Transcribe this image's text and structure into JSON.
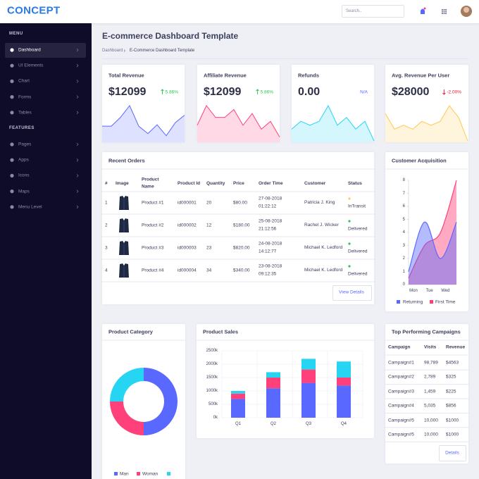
{
  "header": {
    "brand": "CONCEPT",
    "search_placeholder": "Search.."
  },
  "sidebar": {
    "sections": [
      {
        "title": "MENU",
        "items": [
          "Dashboard",
          "UI Elements",
          "Chart",
          "Forms",
          "Tables"
        ]
      },
      {
        "title": "FEATURES",
        "items": [
          "Pages",
          "Apps",
          "Icons",
          "Maps",
          "Menu Level"
        ]
      }
    ]
  },
  "page": {
    "title": "E-commerce Dashboard Template",
    "breadcrumb": [
      "Dashboard",
      "E-Commerce Dashboard Template"
    ]
  },
  "kpis": [
    {
      "title": "Total Revenue",
      "value": "$12099",
      "change": "5.86%",
      "trend": "up",
      "color": "#5969ff",
      "sparkline": [
        4,
        4,
        6.4,
        9.6,
        4,
        2,
        4.4,
        1.4,
        5,
        7
      ]
    },
    {
      "title": "Affiliate Revenue",
      "value": "$12099",
      "change": "5.86%",
      "trend": "up",
      "color": "#ff407b",
      "sparkline": [
        4,
        9,
        6,
        6,
        8,
        4,
        7,
        3,
        5,
        1
      ]
    },
    {
      "title": "Refunds",
      "value": "0.00",
      "change": "N/A",
      "trend": "neutral",
      "color": "#25d5f2",
      "sparkline": [
        3,
        5,
        4,
        5,
        9,
        4,
        6,
        3,
        5,
        0
      ]
    },
    {
      "title": "Avg. Revenue Per User",
      "value": "$28000",
      "change": "-2.00%",
      "trend": "down",
      "color": "#ffc750",
      "sparkline": [
        7,
        3,
        4,
        3,
        5,
        4,
        5,
        9,
        6,
        0
      ]
    }
  ],
  "orders": {
    "title": "Recent Orders",
    "columns": [
      "#",
      "Image",
      "Product Name",
      "Product Id",
      "Quantity",
      "Price",
      "Order Time",
      "Customer",
      "Status"
    ],
    "rows": [
      {
        "number": "1",
        "product_name": "Product #1",
        "product_id": "id000001",
        "quantity": "20",
        "price": "$80.00",
        "order_date": "27-08-2018",
        "order_time": "01:22:12",
        "customer": "Patricia J. King",
        "status": "InTransit",
        "status_color": "#ffc750"
      },
      {
        "number": "2",
        "product_name": "Product #2",
        "product_id": "id000002",
        "quantity": "12",
        "price": "$180.00",
        "order_date": "25-08-2018",
        "order_time": "21:12:56",
        "customer": "Rachel J. Wicker",
        "status": "Delivered",
        "status_color": "#2ec551"
      },
      {
        "number": "3",
        "product_name": "Product #3",
        "product_id": "id000003",
        "quantity": "23",
        "price": "$820.00",
        "order_date": "24-08-2018",
        "order_time": "14:12:77",
        "customer": "Michael K. Ledford",
        "status": "Delivered",
        "status_color": "#2ec551"
      },
      {
        "number": "4",
        "product_name": "Product #4",
        "product_id": "id000004",
        "quantity": "34",
        "price": "$340.00",
        "order_date": "23-08-2018",
        "order_time": "09:12:35",
        "customer": "Michael K. Ledford",
        "status": "Delivered",
        "status_color": "#2ec551"
      }
    ],
    "button": "View Details"
  },
  "customer_acquisition": {
    "title": "Customer Acquisition",
    "type": "area",
    "categories": [
      "Mon",
      "Tue",
      "Wed",
      null
    ],
    "ylim": [
      0,
      8
    ],
    "yticks": [
      0,
      1,
      2,
      3,
      4,
      5,
      6,
      7,
      8
    ],
    "series": [
      {
        "name": "Returning",
        "color": "#5969ff",
        "values": [
          1,
          4.8,
          2,
          4.8
        ]
      },
      {
        "name": "First Time",
        "color": "#ff407b",
        "values": [
          0.5,
          3,
          4,
          8
        ]
      }
    ]
  },
  "product_category": {
    "title": "Product Category",
    "type": "donut",
    "categories": [
      "Man",
      "Woman",
      null
    ],
    "values": [
      50,
      25,
      25
    ],
    "colors": [
      "#5969ff",
      "#ff407b",
      "#25d5f2"
    ]
  },
  "product_sales": {
    "title": "Product Sales",
    "type": "bar",
    "stacked": true,
    "categories": [
      "Q1",
      "Q2",
      "Q3",
      "Q4"
    ],
    "ylim": [
      0,
      2500000
    ],
    "yticks": [
      {
        "value": 0,
        "label": "0k"
      },
      {
        "value": 500000,
        "label": "500k"
      },
      {
        "value": 1000000,
        "label": "1000k"
      },
      {
        "value": 1500000,
        "label": "1500k"
      },
      {
        "value": 2000000,
        "label": "2000k"
      },
      {
        "value": 2500000,
        "label": "2500k"
      }
    ],
    "grid": true,
    "series": [
      {
        "color": "#5969ff",
        "values": [
          700000,
          1100000,
          1300000,
          1200000
        ]
      },
      {
        "color": "#ff407b",
        "values": [
          200000,
          400000,
          500000,
          300000
        ]
      },
      {
        "color": "#25d5f2",
        "values": [
          100000,
          200000,
          400000,
          600000
        ]
      }
    ]
  },
  "campaigns": {
    "title": "Top Performing Campaigns",
    "columns": [
      "Campaign",
      "Visits",
      "Revenue"
    ],
    "rows": [
      [
        "Campaign#1",
        "98,789",
        "$4563"
      ],
      [
        "Campaign#2",
        "2,789",
        "$325"
      ],
      [
        "Campaign#3",
        "1,459",
        "$225"
      ],
      [
        "Campaign#4",
        "5,035",
        "$856"
      ],
      [
        "Campaign#5",
        "10,000",
        "$1000"
      ],
      [
        "Campaign#5",
        "10,000",
        "$1000"
      ]
    ],
    "button": "Details"
  }
}
